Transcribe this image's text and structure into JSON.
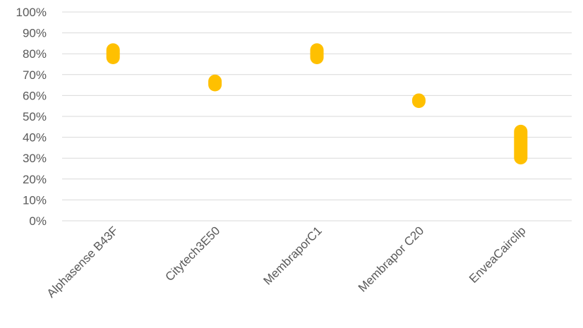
{
  "chart_data": {
    "type": "range",
    "title": "",
    "xlabel": "",
    "ylabel": "",
    "categories": [
      "Alphasense B43F",
      "Citytech3E50",
      "MembraporC1",
      "Membrapor C20",
      "EnveaCairclip"
    ],
    "ranges": [
      {
        "low": 75,
        "high": 85
      },
      {
        "low": 62,
        "high": 70
      },
      {
        "low": 75,
        "high": 85
      },
      {
        "low": 54,
        "high": 61
      },
      {
        "low": 27,
        "high": 46
      }
    ],
    "ylim": [
      0,
      100
    ],
    "yticks": [
      0,
      10,
      20,
      30,
      40,
      50,
      60,
      70,
      80,
      90,
      100
    ],
    "ytick_labels": [
      "0%",
      "10%",
      "20%",
      "30%",
      "40%",
      "50%",
      "60%",
      "70%",
      "80%",
      "90%",
      "100%"
    ],
    "grid": true,
    "legend": "none",
    "colors": {
      "bar": "#FFC000",
      "grid": "#D9D9D9",
      "text": "#595959"
    }
  }
}
